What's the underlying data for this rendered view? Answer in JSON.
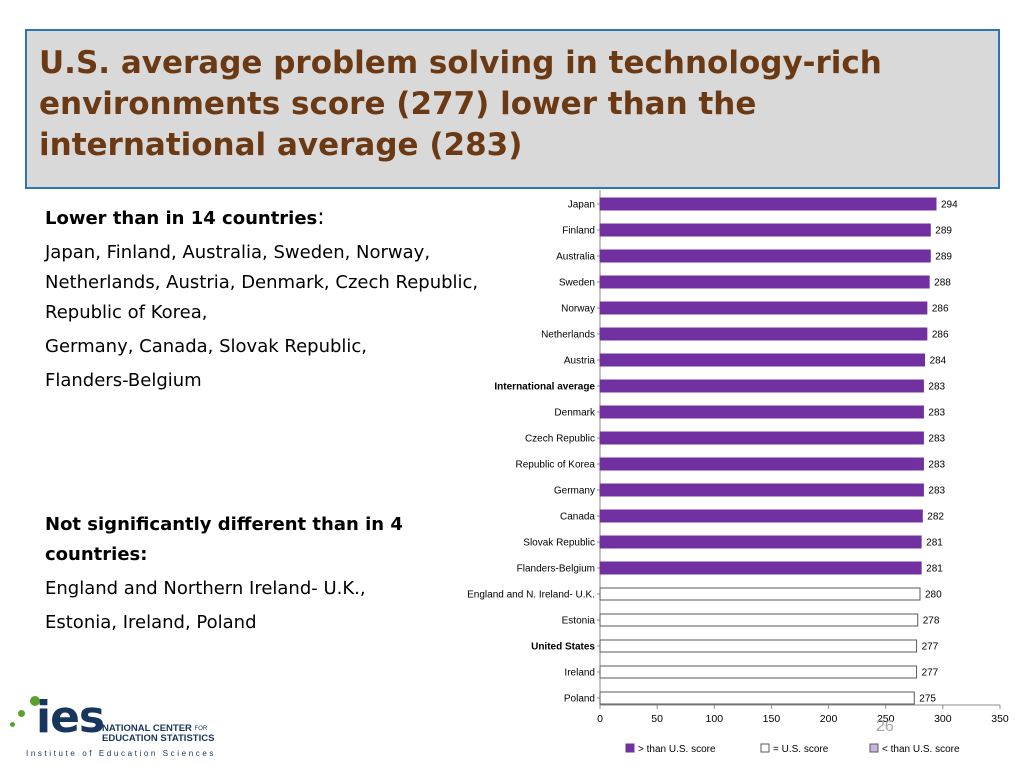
{
  "slide": {
    "title": "U.S. average problem solving in technology-rich environments score (277) lower than the international average (283)",
    "lower_heading": "Lower than in 14 countries",
    "lower_heading_colon": ":",
    "lower_countries_1": "Japan, Finland, Australia, Sweden, Norway, Netherlands, Austria, Denmark, Czech Republic, Republic of Korea,",
    "lower_countries_2": "Germany, Canada, Slovak Republic,",
    "lower_countries_3": "Flanders-Belgium",
    "notdiff_heading": "Not significantly different than in 4 countries:",
    "notdiff_countries_1": "England and Northern Ireland- U.K.,",
    "notdiff_countries_2": "Estonia, Ireland, Poland",
    "slide_number": "26"
  },
  "logo": {
    "mark": "ies",
    "org_line1": "NATIONAL CENTER",
    "org_for": "FOR",
    "org_line2": "EDUCATION STATISTICS",
    "institute": "Institute of Education Sciences"
  },
  "chart_data": {
    "type": "bar",
    "orientation": "horizontal",
    "categories": [
      "Japan",
      "Finland",
      "Australia",
      "Sweden",
      "Norway",
      "Netherlands",
      "Austria",
      "International average",
      "Denmark",
      "Czech Republic",
      "Republic of Korea",
      "Germany",
      "Canada",
      "Slovak Republic",
      "Flanders-Belgium",
      "England and N. Ireland- U.K.",
      "Estonia",
      "United States",
      "Ireland",
      "Poland"
    ],
    "values": [
      294,
      289,
      289,
      288,
      286,
      286,
      284,
      283,
      283,
      283,
      283,
      283,
      282,
      281,
      281,
      280,
      278,
      277,
      277,
      275
    ],
    "status": [
      "higher",
      "higher",
      "higher",
      "higher",
      "higher",
      "higher",
      "higher",
      "higher",
      "higher",
      "higher",
      "higher",
      "higher",
      "higher",
      "higher",
      "higher",
      "equal",
      "equal",
      "equal",
      "equal",
      "equal"
    ],
    "bold_categories": [
      "International average",
      "United States"
    ],
    "xlim": [
      0,
      350
    ],
    "xticks": [
      0,
      50,
      100,
      150,
      200,
      250,
      300,
      350
    ],
    "legend": [
      {
        "label": "> than U.S. score",
        "key": "higher"
      },
      {
        "label": "= U.S. score",
        "key": "equal"
      },
      {
        "label": "< than U.S. score",
        "key": "lower"
      }
    ],
    "legend_position": "bottom",
    "grid": false,
    "colors": {
      "higher": "#7030a0",
      "equal": "#ffffff",
      "lower": "#c9b3e0",
      "edge": "#595959"
    }
  }
}
